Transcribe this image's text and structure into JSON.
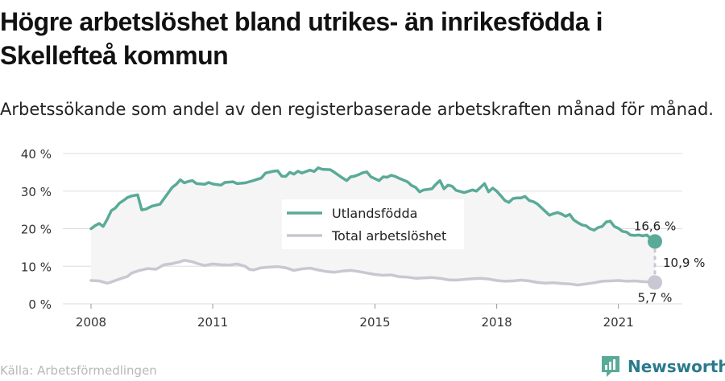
{
  "title": "Högre arbetslöshet bland utrikes- än inrikesfödda i Skellefteå kommun",
  "subtitle": "Arbetssökande som andel av den registerbaserade arbetskraften månad för månad.",
  "source": "Källa: Arbetsförmedlingen",
  "brand": {
    "name": "Newsworthy",
    "icon": "bar-chart-logo-icon"
  },
  "colors": {
    "foreign": "#5aaa98",
    "total": "#c9c7d2",
    "fill": "#f5f5f5",
    "grid": "#dddddd",
    "brand": "#2a7a8c"
  },
  "chart_data": {
    "type": "line",
    "x_axis": {
      "min": 2008.0,
      "max": 2021.9,
      "ticks": [
        2008,
        2011,
        2015,
        2018,
        2021
      ],
      "tick_labels": [
        "2008",
        "2011",
        "2015",
        "2018",
        "2021"
      ]
    },
    "y_axis": {
      "min": 0,
      "max": 40,
      "ticks": [
        0,
        10,
        20,
        30,
        40
      ],
      "tick_labels": [
        "0 %",
        "10 %",
        "20 %",
        "30 %",
        "40 %"
      ]
    },
    "grid": true,
    "legend_position": "center",
    "area_between_series": true,
    "series": [
      {
        "name": "Utlandsfödda",
        "color": "#5aaa98",
        "points": [
          [
            2008.0,
            20.0
          ],
          [
            2008.1,
            20.8
          ],
          [
            2008.2,
            21.4
          ],
          [
            2008.3,
            20.6
          ],
          [
            2008.4,
            22.5
          ],
          [
            2008.5,
            24.8
          ],
          [
            2008.6,
            25.5
          ],
          [
            2008.7,
            26.8
          ],
          [
            2008.8,
            27.5
          ],
          [
            2008.9,
            28.3
          ],
          [
            2009.0,
            28.7
          ],
          [
            2009.15,
            29.0
          ],
          [
            2009.25,
            25.0
          ],
          [
            2009.35,
            25.2
          ],
          [
            2009.5,
            26.0
          ],
          [
            2009.7,
            26.5
          ],
          [
            2009.8,
            28.0
          ],
          [
            2009.9,
            29.5
          ],
          [
            2010.0,
            31.0
          ],
          [
            2010.1,
            31.8
          ],
          [
            2010.2,
            33.0
          ],
          [
            2010.3,
            32.2
          ],
          [
            2010.4,
            32.6
          ],
          [
            2010.5,
            32.8
          ],
          [
            2010.6,
            32.0
          ],
          [
            2010.8,
            31.8
          ],
          [
            2010.9,
            32.3
          ],
          [
            2011.0,
            31.9
          ],
          [
            2011.2,
            31.6
          ],
          [
            2011.3,
            32.3
          ],
          [
            2011.5,
            32.5
          ],
          [
            2011.6,
            32.0
          ],
          [
            2011.8,
            32.2
          ],
          [
            2012.0,
            32.8
          ],
          [
            2012.2,
            33.5
          ],
          [
            2012.3,
            34.8
          ],
          [
            2012.5,
            35.3
          ],
          [
            2012.6,
            35.4
          ],
          [
            2012.7,
            34.0
          ],
          [
            2012.8,
            33.9
          ],
          [
            2012.9,
            35.0
          ],
          [
            2013.0,
            34.5
          ],
          [
            2013.1,
            35.3
          ],
          [
            2013.2,
            34.8
          ],
          [
            2013.3,
            35.2
          ],
          [
            2013.4,
            35.6
          ],
          [
            2013.5,
            35.2
          ],
          [
            2013.6,
            36.2
          ],
          [
            2013.7,
            35.8
          ],
          [
            2013.9,
            35.7
          ],
          [
            2014.0,
            35.0
          ],
          [
            2014.2,
            33.5
          ],
          [
            2014.3,
            32.8
          ],
          [
            2014.4,
            33.8
          ],
          [
            2014.5,
            34.0
          ],
          [
            2014.6,
            34.4
          ],
          [
            2014.7,
            34.9
          ],
          [
            2014.8,
            35.1
          ],
          [
            2014.9,
            33.8
          ],
          [
            2015.0,
            33.3
          ],
          [
            2015.1,
            32.8
          ],
          [
            2015.2,
            33.8
          ],
          [
            2015.3,
            33.7
          ],
          [
            2015.4,
            34.2
          ],
          [
            2015.5,
            33.9
          ],
          [
            2015.6,
            33.4
          ],
          [
            2015.8,
            32.5
          ],
          [
            2015.9,
            31.5
          ],
          [
            2016.0,
            31.0
          ],
          [
            2016.1,
            29.8
          ],
          [
            2016.2,
            30.3
          ],
          [
            2016.4,
            30.6
          ],
          [
            2016.5,
            31.8
          ],
          [
            2016.6,
            32.8
          ],
          [
            2016.7,
            30.6
          ],
          [
            2016.8,
            31.6
          ],
          [
            2016.9,
            31.3
          ],
          [
            2017.0,
            30.2
          ],
          [
            2017.2,
            29.6
          ],
          [
            2017.4,
            30.3
          ],
          [
            2017.5,
            30.0
          ],
          [
            2017.6,
            31.0
          ],
          [
            2017.7,
            32.0
          ],
          [
            2017.8,
            29.8
          ],
          [
            2017.9,
            30.8
          ],
          [
            2018.0,
            30.0
          ],
          [
            2018.1,
            28.8
          ],
          [
            2018.2,
            27.5
          ],
          [
            2018.3,
            27.0
          ],
          [
            2018.4,
            28.0
          ],
          [
            2018.5,
            28.2
          ],
          [
            2018.6,
            28.2
          ],
          [
            2018.7,
            28.6
          ],
          [
            2018.8,
            27.5
          ],
          [
            2018.9,
            27.2
          ],
          [
            2019.0,
            26.6
          ],
          [
            2019.1,
            25.6
          ],
          [
            2019.2,
            24.6
          ],
          [
            2019.3,
            23.6
          ],
          [
            2019.4,
            24.0
          ],
          [
            2019.5,
            24.3
          ],
          [
            2019.6,
            23.9
          ],
          [
            2019.7,
            23.3
          ],
          [
            2019.8,
            23.8
          ],
          [
            2019.9,
            22.3
          ],
          [
            2020.0,
            21.6
          ],
          [
            2020.1,
            21.0
          ],
          [
            2020.2,
            20.8
          ],
          [
            2020.3,
            20.0
          ],
          [
            2020.4,
            19.6
          ],
          [
            2020.5,
            20.3
          ],
          [
            2020.6,
            20.6
          ],
          [
            2020.7,
            21.8
          ],
          [
            2020.8,
            22.0
          ],
          [
            2020.9,
            20.6
          ],
          [
            2021.0,
            20.1
          ],
          [
            2021.1,
            19.3
          ],
          [
            2021.2,
            19.1
          ],
          [
            2021.3,
            18.3
          ],
          [
            2021.4,
            18.2
          ],
          [
            2021.5,
            18.3
          ],
          [
            2021.6,
            18.1
          ],
          [
            2021.7,
            18.3
          ],
          [
            2021.8,
            17.4
          ],
          [
            2021.9,
            16.6
          ]
        ],
        "end_label": "16,6 %"
      },
      {
        "name": "Total arbetslöshet",
        "color": "#c9c7d2",
        "points": [
          [
            2008.0,
            6.2
          ],
          [
            2008.2,
            6.1
          ],
          [
            2008.4,
            5.5
          ],
          [
            2008.5,
            5.8
          ],
          [
            2008.7,
            6.6
          ],
          [
            2008.9,
            7.3
          ],
          [
            2009.0,
            8.2
          ],
          [
            2009.2,
            8.9
          ],
          [
            2009.4,
            9.4
          ],
          [
            2009.6,
            9.2
          ],
          [
            2009.8,
            10.4
          ],
          [
            2010.0,
            10.7
          ],
          [
            2010.2,
            11.2
          ],
          [
            2010.3,
            11.6
          ],
          [
            2010.5,
            11.2
          ],
          [
            2010.6,
            10.8
          ],
          [
            2010.8,
            10.2
          ],
          [
            2011.0,
            10.6
          ],
          [
            2011.2,
            10.4
          ],
          [
            2011.4,
            10.3
          ],
          [
            2011.6,
            10.6
          ],
          [
            2011.8,
            10.0
          ],
          [
            2011.9,
            9.2
          ],
          [
            2012.0,
            9.0
          ],
          [
            2012.2,
            9.6
          ],
          [
            2012.4,
            9.8
          ],
          [
            2012.6,
            9.9
          ],
          [
            2012.8,
            9.6
          ],
          [
            2013.0,
            8.9
          ],
          [
            2013.2,
            9.3
          ],
          [
            2013.4,
            9.5
          ],
          [
            2013.6,
            9.0
          ],
          [
            2013.8,
            8.6
          ],
          [
            2014.0,
            8.4
          ],
          [
            2014.2,
            8.7
          ],
          [
            2014.4,
            8.9
          ],
          [
            2014.6,
            8.6
          ],
          [
            2014.8,
            8.2
          ],
          [
            2015.0,
            7.8
          ],
          [
            2015.2,
            7.6
          ],
          [
            2015.4,
            7.7
          ],
          [
            2015.6,
            7.2
          ],
          [
            2015.8,
            7.1
          ],
          [
            2016.0,
            6.8
          ],
          [
            2016.2,
            6.9
          ],
          [
            2016.4,
            7.0
          ],
          [
            2016.6,
            6.8
          ],
          [
            2016.8,
            6.4
          ],
          [
            2017.0,
            6.3
          ],
          [
            2017.2,
            6.5
          ],
          [
            2017.4,
            6.7
          ],
          [
            2017.6,
            6.8
          ],
          [
            2017.8,
            6.6
          ],
          [
            2018.0,
            6.2
          ],
          [
            2018.2,
            6.0
          ],
          [
            2018.4,
            6.1
          ],
          [
            2018.6,
            6.3
          ],
          [
            2018.8,
            6.1
          ],
          [
            2019.0,
            5.7
          ],
          [
            2019.2,
            5.5
          ],
          [
            2019.4,
            5.6
          ],
          [
            2019.6,
            5.4
          ],
          [
            2019.8,
            5.3
          ],
          [
            2020.0,
            5.0
          ],
          [
            2020.2,
            5.3
          ],
          [
            2020.4,
            5.6
          ],
          [
            2020.6,
            6.0
          ],
          [
            2020.8,
            6.1
          ],
          [
            2021.0,
            6.2
          ],
          [
            2021.2,
            6.0
          ],
          [
            2021.4,
            6.1
          ],
          [
            2021.6,
            5.9
          ],
          [
            2021.8,
            5.8
          ],
          [
            2021.9,
            5.7
          ]
        ],
        "end_label": "5,7 %"
      }
    ],
    "annotations": [
      {
        "text": "10,9 %",
        "kind": "difference-between-end-values"
      }
    ]
  }
}
